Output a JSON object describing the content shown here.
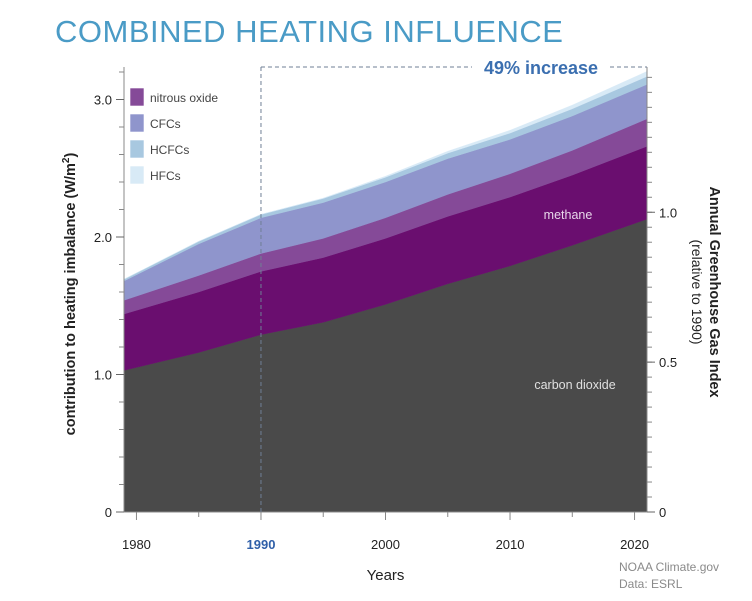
{
  "chart_data": {
    "type": "area",
    "title": "COMBINED HEATING INFLUENCE",
    "xlabel": "Years",
    "ylabel": "contribution to heating imbalance (W/m",
    "ylabel_sup": "2",
    "ylabel_close": ")",
    "y2label": "Annual Greenhouse Gas Index",
    "y2label_sub": "(relative to 1990)",
    "xlim": [
      1979,
      2021
    ],
    "ylim": [
      0,
      3.2
    ],
    "x_ticks": [
      "1980",
      "1990",
      "2000",
      "2010",
      "2020"
    ],
    "x_tick_values": [
      1980,
      1990,
      2000,
      2010,
      2020
    ],
    "highlight_tick": "1990",
    "y_ticks": [
      "0",
      "1.0",
      "2.0",
      "3.0"
    ],
    "y_tick_values": [
      0,
      1.0,
      2.0,
      3.0
    ],
    "y2_ticks": [
      "0",
      "0.5",
      "1.0"
    ],
    "y2_tick_values": [
      0,
      0.5,
      1.0
    ],
    "y2_scale_1990": 2.18,
    "annotation": {
      "text": "49% increase",
      "from_year": 1990
    },
    "x": [
      1979,
      1985,
      1990,
      1995,
      2000,
      2005,
      2010,
      2015,
      2021
    ],
    "series": [
      {
        "name": "carbon dioxide",
        "color": "#4a4a4a",
        "label_color": "#e0e0e0",
        "values": [
          1.03,
          1.16,
          1.29,
          1.38,
          1.51,
          1.66,
          1.79,
          1.94,
          2.13
        ]
      },
      {
        "name": "methane",
        "color": "#6a0e6f",
        "label_color": "#e8d6ea",
        "values": [
          0.41,
          0.44,
          0.46,
          0.47,
          0.48,
          0.49,
          0.5,
          0.51,
          0.53
        ]
      },
      {
        "name": "nitrous oxide",
        "color": "#854a98",
        "label_color": "#444444",
        "values": [
          0.1,
          0.12,
          0.13,
          0.14,
          0.15,
          0.16,
          0.17,
          0.18,
          0.2
        ]
      },
      {
        "name": "CFCs",
        "color": "#8f95cc",
        "label_color": "#444444",
        "values": [
          0.14,
          0.23,
          0.26,
          0.26,
          0.26,
          0.26,
          0.25,
          0.25,
          0.25
        ]
      },
      {
        "name": "HCFCs",
        "color": "#a8c8e0",
        "label_color": "#444444",
        "values": [
          0.012,
          0.018,
          0.024,
          0.03,
          0.034,
          0.04,
          0.046,
          0.052,
          0.058
        ]
      },
      {
        "name": "HFCs",
        "color": "#d8eaf6",
        "label_color": "#444444",
        "values": [
          0.0,
          0.0,
          0.001,
          0.003,
          0.008,
          0.014,
          0.02,
          0.027,
          0.036
        ]
      }
    ],
    "legend": {
      "placement": "top-left",
      "entries": [
        "nitrous oxide",
        "CFCs",
        "HCFCs",
        "HFCs"
      ]
    },
    "grid": false
  },
  "credits": {
    "line1": "NOAA Climate.gov",
    "line2": "Data: ESRL"
  }
}
